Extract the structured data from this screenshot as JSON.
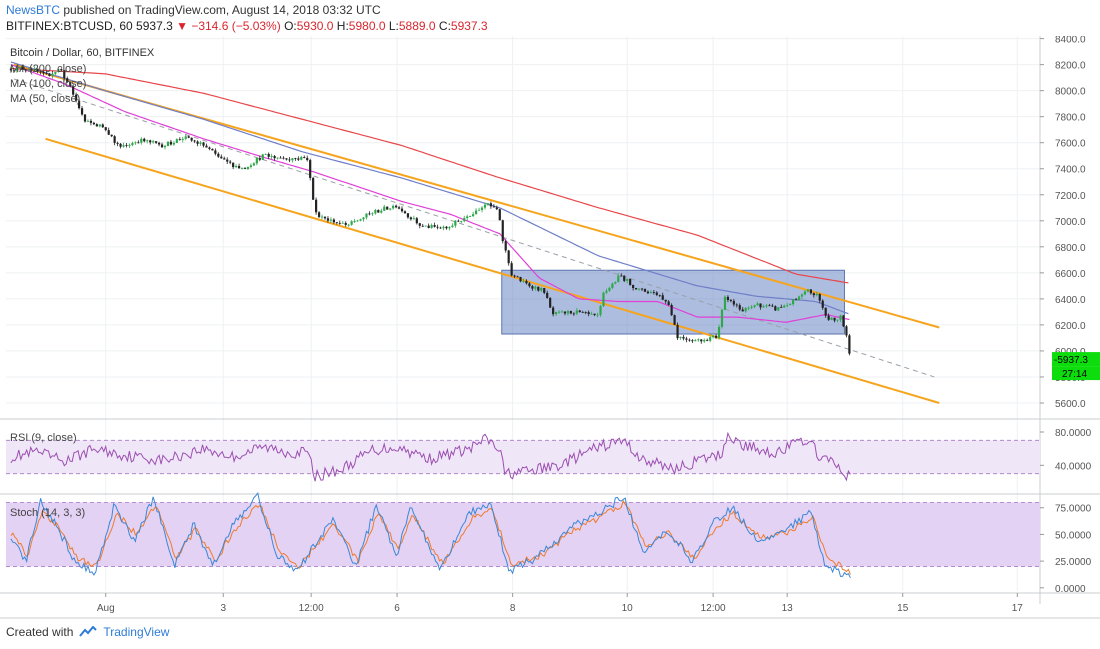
{
  "header": {
    "publisher": "NewsBTC",
    "published_text": " published on TradingView.com, August 14, 2018 03:32 UTC",
    "symbol": "BITFINEX:BTCUSD, 60",
    "last": "5937.3",
    "change": "−314.6 (−5.03%)",
    "open_label": "O:",
    "open": "5930.0",
    "high_label": "H:",
    "high": "5980.0",
    "low_label": "L:",
    "low": "5889.0",
    "close_label": "C:",
    "close": "5937.3"
  },
  "footer": {
    "created_with": "Created with",
    "brand": "TradingView"
  },
  "colors": {
    "candle_up": "#2ea84a",
    "candle_down": "#222222",
    "ma200": "#e8474a",
    "ma100": "#6f7fc8",
    "ma50": "#e040d8",
    "channel": "#f7a41d",
    "box": "#6a86c4",
    "rsi": "#9b4fb0",
    "stoch_k": "#3a87d6",
    "stoch_d": "#f07a2a",
    "price_tag": "#0ddd0d"
  },
  "chart_data": [
    {
      "type": "candlestick",
      "title": "Bitcoin / Dollar, 60, BITFINEX",
      "legend": [
        "MA (200, close)",
        "MA (100, close)",
        "MA (50, close)"
      ],
      "y_ticks": [
        5600,
        5800,
        6000,
        6200,
        6400,
        6600,
        6800,
        7000,
        7200,
        7400,
        7600,
        7800,
        8000,
        8200,
        8400
      ],
      "y_tick_labels": [
        "5600.0",
        "5800.0",
        "6000.0",
        "6200.0",
        "6400.0",
        "6600.0",
        "6800.0",
        "7000.0",
        "7200.0",
        "7400.0",
        "7600.0",
        "7800.0",
        "8000.0",
        "8200.0",
        "8400.0"
      ],
      "ylim": [
        5500,
        8420
      ],
      "xlim": [
        0,
        1047
      ],
      "x_tick_positions": [
        101,
        220,
        309,
        396,
        513,
        629,
        716,
        791,
        908,
        1024
      ],
      "x_tick_labels": [
        "Aug",
        "3",
        "12:00",
        "6",
        "8",
        "10",
        "12:00",
        "13",
        "15",
        "17"
      ],
      "price_anchors": [
        [
          5,
          8170
        ],
        [
          25,
          8170
        ],
        [
          40,
          8110
        ],
        [
          55,
          8170
        ],
        [
          70,
          7940
        ],
        [
          80,
          7760
        ],
        [
          100,
          7720
        ],
        [
          115,
          7560
        ],
        [
          135,
          7620
        ],
        [
          160,
          7580
        ],
        [
          180,
          7640
        ],
        [
          200,
          7580
        ],
        [
          220,
          7460
        ],
        [
          240,
          7400
        ],
        [
          260,
          7500
        ],
        [
          285,
          7480
        ],
        [
          305,
          7480
        ],
        [
          313,
          7060
        ],
        [
          330,
          7000
        ],
        [
          345,
          6960
        ],
        [
          370,
          7060
        ],
        [
          395,
          7120
        ],
        [
          420,
          6960
        ],
        [
          445,
          6940
        ],
        [
          470,
          7050
        ],
        [
          485,
          7130
        ],
        [
          498,
          7080
        ],
        [
          503,
          6850
        ],
        [
          512,
          6590
        ],
        [
          525,
          6520
        ],
        [
          545,
          6460
        ],
        [
          553,
          6280
        ],
        [
          575,
          6300
        ],
        [
          600,
          6260
        ],
        [
          605,
          6440
        ],
        [
          622,
          6580
        ],
        [
          640,
          6470
        ],
        [
          660,
          6440
        ],
        [
          672,
          6350
        ],
        [
          680,
          6110
        ],
        [
          700,
          6080
        ],
        [
          720,
          6110
        ],
        [
          728,
          6430
        ],
        [
          745,
          6300
        ],
        [
          760,
          6360
        ],
        [
          780,
          6320
        ],
        [
          800,
          6390
        ],
        [
          812,
          6460
        ],
        [
          822,
          6420
        ],
        [
          832,
          6240
        ],
        [
          845,
          6260
        ],
        [
          851,
          6120
        ],
        [
          855,
          5937
        ]
      ],
      "ma200": [
        [
          5,
          8170
        ],
        [
          100,
          8130
        ],
        [
          200,
          7980
        ],
        [
          300,
          7780
        ],
        [
          400,
          7580
        ],
        [
          500,
          7330
        ],
        [
          600,
          7100
        ],
        [
          700,
          6890
        ],
        [
          800,
          6590
        ],
        [
          855,
          6520
        ]
      ],
      "ma100": [
        [
          5,
          8220
        ],
        [
          100,
          8000
        ],
        [
          200,
          7780
        ],
        [
          300,
          7530
        ],
        [
          400,
          7330
        ],
        [
          500,
          7100
        ],
        [
          600,
          6730
        ],
        [
          700,
          6500
        ],
        [
          760,
          6420
        ],
        [
          820,
          6380
        ],
        [
          855,
          6280
        ]
      ],
      "ma50": [
        [
          5,
          8200
        ],
        [
          60,
          8050
        ],
        [
          120,
          7840
        ],
        [
          200,
          7630
        ],
        [
          260,
          7490
        ],
        [
          310,
          7380
        ],
        [
          400,
          7150
        ],
        [
          450,
          7050
        ],
        [
          500,
          6900
        ],
        [
          540,
          6560
        ],
        [
          580,
          6400
        ],
        [
          620,
          6380
        ],
        [
          660,
          6380
        ],
        [
          700,
          6260
        ],
        [
          740,
          6260
        ],
        [
          790,
          6220
        ],
        [
          830,
          6280
        ],
        [
          855,
          6240
        ]
      ],
      "trend_dashed": [
        [
          8,
          8090
        ],
        [
          940,
          5800
        ]
      ],
      "channel_upper": [
        [
          8,
          8200
        ],
        [
          945,
          6180
        ]
      ],
      "channel_lower": [
        [
          40,
          7630
        ],
        [
          945,
          5600
        ]
      ],
      "range_box": [
        6130,
        6620
      ],
      "range_box_x": [
        502,
        849
      ],
      "last_price": "5937.3",
      "countdown": "27:14"
    },
    {
      "type": "line",
      "title": "RSI (9, close)",
      "y_ticks": [
        40,
        80
      ],
      "y_tick_labels": [
        "40.0000",
        "80.0000"
      ],
      "ylim": [
        8,
        92
      ],
      "band": [
        30,
        70
      ],
      "anchors": [
        [
          5,
          50
        ],
        [
          30,
          56
        ],
        [
          60,
          45
        ],
        [
          90,
          60
        ],
        [
          120,
          52
        ],
        [
          160,
          46
        ],
        [
          200,
          60
        ],
        [
          230,
          50
        ],
        [
          260,
          62
        ],
        [
          290,
          55
        ],
        [
          305,
          56
        ],
        [
          313,
          27
        ],
        [
          340,
          35
        ],
        [
          370,
          58
        ],
        [
          395,
          62
        ],
        [
          430,
          48
        ],
        [
          470,
          60
        ],
        [
          486,
          72
        ],
        [
          500,
          58
        ],
        [
          505,
          30
        ],
        [
          530,
          33
        ],
        [
          560,
          40
        ],
        [
          600,
          62
        ],
        [
          625,
          70
        ],
        [
          645,
          46
        ],
        [
          680,
          36
        ],
        [
          700,
          45
        ],
        [
          725,
          53
        ],
        [
          730,
          78
        ],
        [
          745,
          64
        ],
        [
          780,
          55
        ],
        [
          810,
          72
        ],
        [
          825,
          50
        ],
        [
          840,
          40
        ],
        [
          855,
          25
        ]
      ]
    },
    {
      "type": "line",
      "title": "Stoch (14, 3, 3)",
      "y_ticks": [
        0,
        25,
        50,
        75
      ],
      "y_tick_labels": [
        "0.0000",
        "25.0000",
        "50.0000",
        "75.0000"
      ],
      "ylim": [
        -3,
        86
      ],
      "band": [
        20,
        80
      ],
      "k_anchors": [
        [
          5,
          50
        ],
        [
          20,
          25
        ],
        [
          35,
          80
        ],
        [
          50,
          60
        ],
        [
          70,
          25
        ],
        [
          90,
          15
        ],
        [
          110,
          78
        ],
        [
          130,
          45
        ],
        [
          150,
          85
        ],
        [
          170,
          20
        ],
        [
          190,
          60
        ],
        [
          210,
          20
        ],
        [
          230,
          60
        ],
        [
          255,
          85
        ],
        [
          275,
          30
        ],
        [
          295,
          15
        ],
        [
          330,
          65
        ],
        [
          355,
          20
        ],
        [
          375,
          78
        ],
        [
          395,
          30
        ],
        [
          410,
          75
        ],
        [
          440,
          18
        ],
        [
          470,
          70
        ],
        [
          490,
          80
        ],
        [
          510,
          15
        ],
        [
          540,
          30
        ],
        [
          570,
          55
        ],
        [
          600,
          70
        ],
        [
          625,
          85
        ],
        [
          645,
          35
        ],
        [
          670,
          55
        ],
        [
          695,
          25
        ],
        [
          715,
          60
        ],
        [
          735,
          75
        ],
        [
          760,
          45
        ],
        [
          790,
          55
        ],
        [
          815,
          70
        ],
        [
          830,
          20
        ],
        [
          855,
          10
        ]
      ],
      "d_anchors": [
        [
          5,
          52
        ],
        [
          22,
          30
        ],
        [
          37,
          72
        ],
        [
          52,
          58
        ],
        [
          72,
          28
        ],
        [
          92,
          20
        ],
        [
          112,
          70
        ],
        [
          132,
          50
        ],
        [
          152,
          78
        ],
        [
          172,
          28
        ],
        [
          192,
          55
        ],
        [
          212,
          25
        ],
        [
          232,
          55
        ],
        [
          257,
          78
        ],
        [
          277,
          35
        ],
        [
          297,
          20
        ],
        [
          332,
          60
        ],
        [
          357,
          25
        ],
        [
          377,
          70
        ],
        [
          397,
          35
        ],
        [
          412,
          68
        ],
        [
          442,
          22
        ],
        [
          472,
          65
        ],
        [
          492,
          74
        ],
        [
          512,
          22
        ],
        [
          542,
          30
        ],
        [
          572,
          52
        ],
        [
          602,
          66
        ],
        [
          627,
          80
        ],
        [
          647,
          40
        ],
        [
          672,
          52
        ],
        [
          697,
          28
        ],
        [
          717,
          55
        ],
        [
          737,
          70
        ],
        [
          762,
          48
        ],
        [
          792,
          52
        ],
        [
          817,
          66
        ],
        [
          832,
          28
        ],
        [
          855,
          15
        ]
      ]
    }
  ]
}
